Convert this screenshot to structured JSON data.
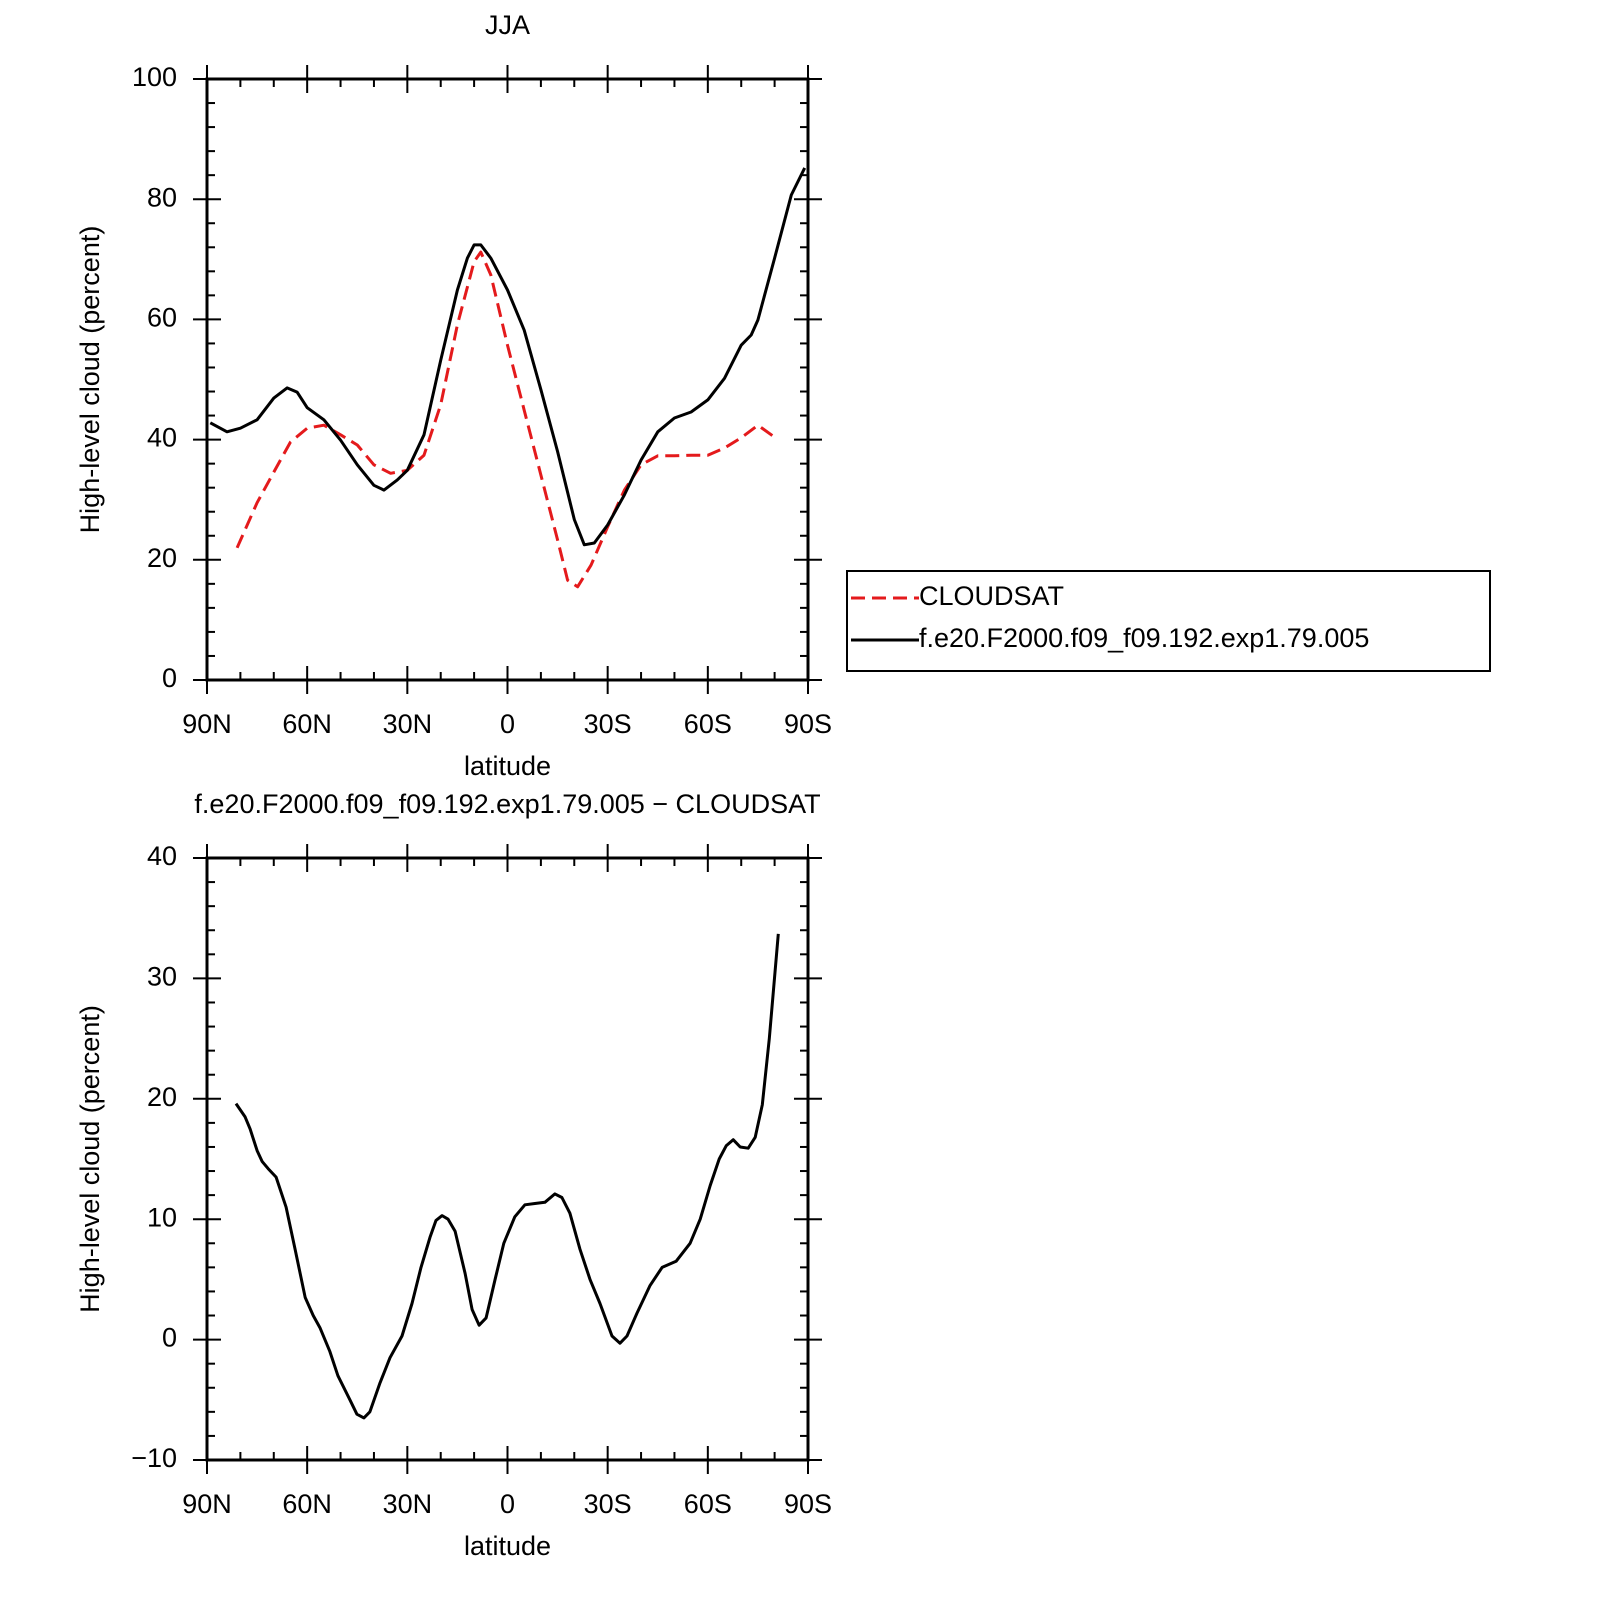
{
  "chart_data": [
    {
      "type": "line",
      "title": "JJA",
      "xlabel": "latitude",
      "ylabel": "High-level cloud (percent)",
      "xlim": [
        90,
        -90
      ],
      "xticks": [
        {
          "value": 90,
          "label": "90N"
        },
        {
          "value": 60,
          "label": "60N"
        },
        {
          "value": 30,
          "label": "30N"
        },
        0,
        {
          "value": -30,
          "label": "30S"
        },
        {
          "value": -60,
          "label": "60S"
        },
        {
          "value": -90,
          "label": "90S"
        }
      ],
      "minor_xticks": [
        80,
        70,
        50,
        40,
        20,
        10,
        -10,
        -20,
        -40,
        -50,
        -70,
        -80
      ],
      "ylim": [
        0,
        100
      ],
      "yticks": [
        0,
        20,
        40,
        60,
        80,
        100
      ],
      "minor_yticks": [
        4,
        8,
        12,
        16,
        24,
        28,
        32,
        36,
        44,
        48,
        52,
        56,
        64,
        68,
        72,
        76,
        84,
        88,
        92,
        96
      ],
      "legend": "right",
      "series": [
        {
          "name": "CLOUDSAT",
          "color": "#e41a1c",
          "dash": "dashed",
          "x": [
            81,
            75,
            70,
            65,
            60,
            55,
            50,
            45,
            40,
            35,
            30,
            25,
            20,
            15,
            10,
            8,
            5,
            0,
            -5,
            -10,
            -15,
            -18,
            -21,
            -25,
            -30,
            -35,
            -40,
            -45,
            -50,
            -55,
            -60,
            -65,
            -70,
            -75,
            -80
          ],
          "values": [
            22.0,
            29.5,
            34.6,
            39.6,
            41.9,
            42.4,
            40.8,
            39.1,
            35.8,
            34.4,
            34.9,
            37.4,
            45.8,
            59.1,
            69.6,
            71.2,
            67.4,
            55.7,
            44.9,
            34.1,
            23.3,
            16.6,
            15.5,
            19.1,
            25.5,
            31.6,
            35.8,
            37.3,
            37.3,
            37.4,
            37.4,
            38.6,
            40.3,
            42.4,
            40.4
          ]
        },
        {
          "name": "f.e20.F2000.f09_f09.192.exp1.79.005",
          "color": "#000000",
          "dash": "solid",
          "x": [
            89,
            84,
            80,
            75,
            70,
            66,
            63,
            60,
            55,
            50,
            45,
            40,
            37,
            33,
            30,
            25,
            20,
            15,
            12,
            10,
            8,
            5,
            0,
            -5,
            -10,
            -15,
            -20,
            -23,
            -26,
            -30,
            -35,
            -40,
            -45,
            -50,
            -55,
            -60,
            -65,
            -70,
            -73,
            -75,
            -80,
            -85,
            -89
          ],
          "values": [
            42.8,
            41.3,
            41.9,
            43.3,
            46.9,
            48.6,
            47.9,
            45.3,
            43.3,
            39.9,
            35.8,
            32.4,
            31.6,
            33.3,
            34.9,
            40.8,
            53.2,
            64.9,
            70.2,
            72.4,
            72.4,
            70.2,
            64.9,
            58.2,
            48.3,
            38.0,
            26.7,
            22.5,
            22.8,
            25.8,
            30.8,
            36.6,
            41.3,
            43.6,
            44.6,
            46.6,
            50.2,
            55.7,
            57.4,
            59.9,
            70.2,
            80.7,
            85.2
          ]
        }
      ]
    },
    {
      "type": "line",
      "title": "f.e20.F2000.f09_f09.192.exp1.79.005 − CLOUDSAT",
      "xlabel": "latitude",
      "ylabel": "High-level cloud (percent)",
      "xlim": [
        90,
        -90
      ],
      "xticks": [
        {
          "value": 90,
          "label": "90N"
        },
        {
          "value": 60,
          "label": "60N"
        },
        {
          "value": 30,
          "label": "30N"
        },
        0,
        {
          "value": -30,
          "label": "30S"
        },
        {
          "value": -60,
          "label": "60S"
        },
        {
          "value": -90,
          "label": "90S"
        }
      ],
      "minor_xticks": [
        80,
        70,
        50,
        40,
        20,
        10,
        -10,
        -20,
        -40,
        -50,
        -70,
        -80
      ],
      "ylim": [
        -10,
        40
      ],
      "yticks": [
        {
          "value": -10,
          "label": "−10"
        },
        0,
        10,
        20,
        30,
        40
      ],
      "minor_yticks": [
        -8,
        -6,
        -4,
        -2,
        2,
        4,
        6,
        8,
        12,
        14,
        16,
        18,
        22,
        24,
        26,
        28,
        32,
        34,
        36,
        38
      ],
      "series": [
        {
          "color": "#000000",
          "dash": "solid",
          "x": [
            81.3,
            78.6,
            77.1,
            75.0,
            73.5,
            71.7,
            69.3,
            66.3,
            63.6,
            60.6,
            58.2,
            56.2,
            53.2,
            50.8,
            47.2,
            45.1,
            43.0,
            41.2,
            38.2,
            35.2,
            31.6,
            28.6,
            25.9,
            23.2,
            21.4,
            19.6,
            17.8,
            15.7,
            12.7,
            10.6,
            8.5,
            6.4,
            3.7,
            1.1,
            -2.2,
            -5.2,
            -8.2,
            -11.2,
            -14.2,
            -16.3,
            -18.7,
            -21.7,
            -24.7,
            -27.7,
            -31.3,
            -33.7,
            -35.8,
            -38.8,
            -42.7,
            -46.3,
            -50.5,
            -54.7,
            -57.7,
            -60.7,
            -63.4,
            -65.5,
            -67.6,
            -69.7,
            -72.1,
            -74.2,
            -76.3,
            -78.4,
            -81.1
          ],
          "values": [
            19.6,
            18.5,
            17.5,
            15.7,
            14.8,
            14.2,
            13.5,
            11.0,
            7.5,
            3.5,
            2.0,
            1.0,
            -1.0,
            -3.0,
            -5.0,
            -6.2,
            -6.5,
            -6.0,
            -3.6,
            -1.5,
            0.3,
            3.0,
            6.0,
            8.5,
            9.9,
            10.3,
            10.0,
            9.0,
            5.5,
            2.5,
            1.2,
            1.8,
            5.0,
            8.0,
            10.2,
            11.2,
            11.3,
            11.4,
            12.1,
            11.8,
            10.5,
            7.5,
            5.0,
            3.0,
            0.3,
            -0.3,
            0.3,
            2.2,
            4.5,
            6.0,
            6.5,
            8.0,
            10.0,
            12.8,
            15.0,
            16.1,
            16.6,
            16.0,
            15.9,
            16.8,
            19.5,
            25.0,
            33.7
          ]
        }
      ]
    }
  ]
}
